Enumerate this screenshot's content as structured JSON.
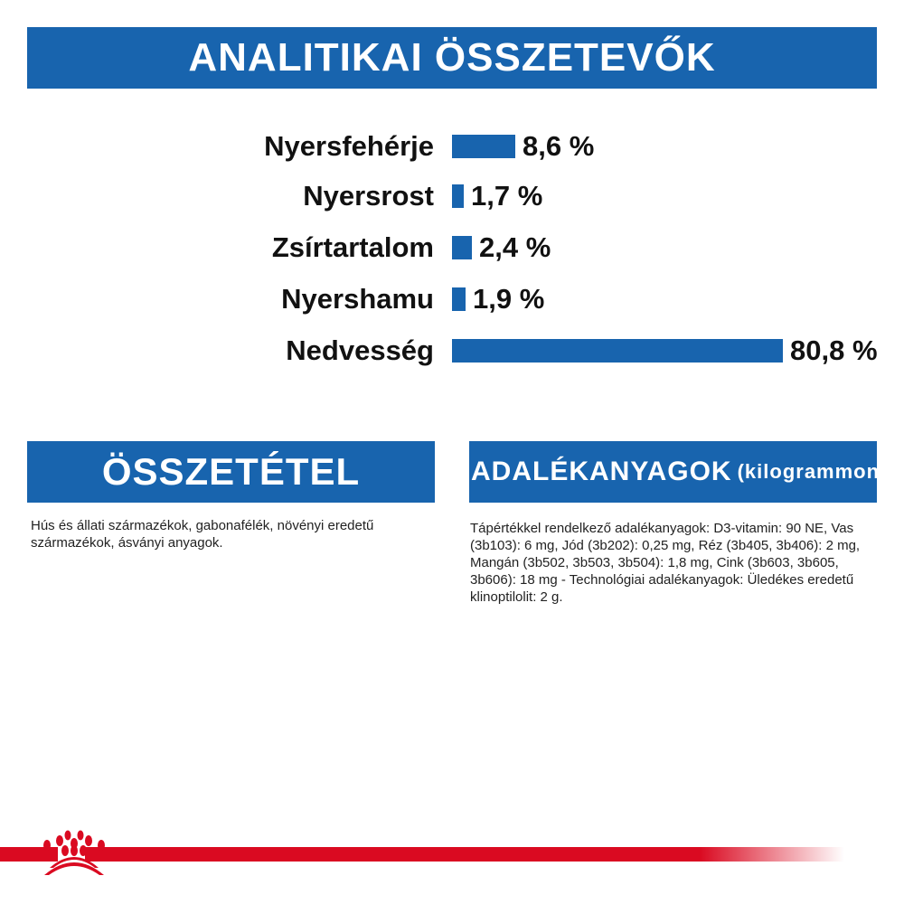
{
  "title": "ANALITIKAI ÖSSZETEVŐK",
  "chart_data": {
    "type": "bar",
    "orientation": "horizontal",
    "categories": [
      "Nyersfehérje",
      "Nyersrost",
      "Zsírtartalom",
      "Nyershamu",
      "Nedvesség"
    ],
    "values": [
      8.6,
      1.7,
      2.4,
      1.9,
      80.8
    ],
    "value_labels": [
      "8,6 %",
      "1,7 %",
      "2,4 %",
      "1,9 %",
      "80,8 %"
    ],
    "unit": "%",
    "color": "#1864ae"
  },
  "composition": {
    "title": "ÖSSZETÉTEL",
    "text": "Hús és állati származékok, gabonafélék, növényi eredetű származékok, ásványi anyagok."
  },
  "additives": {
    "title": "ADALÉKANYAGOK",
    "title_suffix": "(kilogrammonként)",
    "text": "Tápértékkel rendelkező adalékanyagok: D3-vitamin: 90 NE, Vas (3b103): 6 mg, Jód (3b202): 0,25 mg, Réz (3b405, 3b406): 2 mg, Mangán (3b502, 3b503, 3b504): 1,8 mg, Cink (3b603, 3b605, 3b606): 18 mg - Technológiai adalékanyagok: Üledékes eredetű klinoptilolit: 2 g."
  },
  "logo": {
    "name": "royal-canin-crown-logo",
    "color": "#da0a21"
  }
}
